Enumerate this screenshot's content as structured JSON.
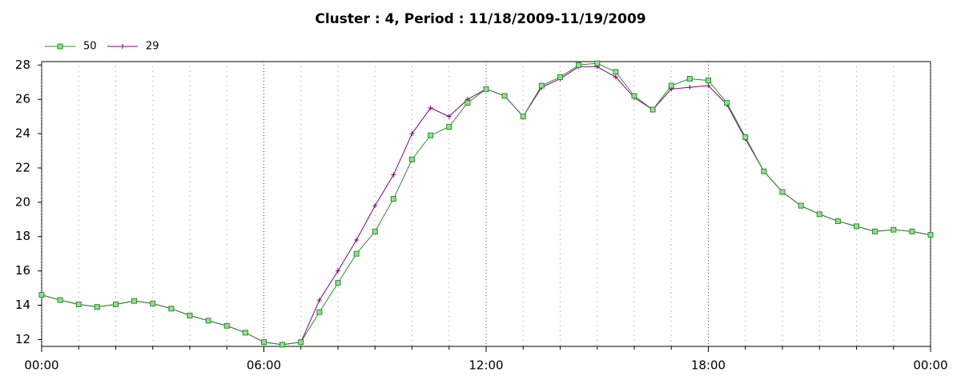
{
  "chart_data": {
    "type": "line",
    "title": "Cluster : 4, Period : 11/18/2009-11/19/2009",
    "x": [
      0,
      0.5,
      1,
      1.5,
      2,
      2.5,
      3,
      3.5,
      4,
      4.5,
      5,
      5.5,
      6,
      6.5,
      7,
      7.5,
      8,
      8.5,
      9,
      9.5,
      10,
      10.5,
      11,
      11.5,
      12,
      12.5,
      13,
      13.5,
      14,
      14.5,
      15,
      15.5,
      16,
      16.5,
      17,
      17.5,
      18,
      18.5,
      19,
      19.5,
      20,
      20.5,
      21,
      21.5,
      22,
      22.5,
      23,
      23.5,
      24
    ],
    "series": [
      {
        "name": "50",
        "color": "#2e8b2e",
        "marker_fill": "#90e090",
        "marker": "square",
        "values": [
          14.6,
          14.3,
          14.05,
          13.9,
          14.05,
          14.25,
          14.1,
          13.8,
          13.4,
          13.1,
          12.8,
          12.4,
          11.85,
          11.7,
          11.85,
          13.6,
          15.3,
          17.0,
          18.3,
          20.2,
          22.5,
          23.9,
          24.4,
          25.8,
          26.6,
          26.2,
          25.0,
          26.8,
          27.3,
          28.0,
          28.1,
          27.6,
          26.2,
          25.4,
          26.8,
          27.2,
          27.1,
          25.8,
          23.8,
          21.8,
          20.6,
          19.8,
          19.3,
          18.9,
          18.6,
          18.3,
          18.4,
          18.3,
          18.1
        ]
      },
      {
        "name": "29",
        "color": "#800080",
        "marker": "cross",
        "values": [
          14.6,
          14.3,
          14.05,
          13.9,
          14.05,
          14.25,
          14.1,
          13.8,
          13.4,
          13.1,
          12.8,
          12.4,
          11.85,
          11.7,
          11.85,
          14.3,
          16.0,
          17.8,
          19.8,
          21.6,
          24.0,
          25.5,
          25.0,
          26.0,
          26.6,
          26.2,
          25.0,
          26.7,
          27.2,
          27.9,
          27.9,
          27.3,
          26.1,
          25.4,
          26.6,
          26.7,
          26.8,
          25.7,
          23.7,
          21.8,
          20.6,
          19.8,
          19.3,
          18.9,
          18.6,
          18.3,
          18.4,
          18.3,
          18.1
        ]
      }
    ],
    "xlim": [
      0,
      24
    ],
    "xticks": [
      {
        "value": 0,
        "label": "00:00"
      },
      {
        "value": 6,
        "label": "06:00"
      },
      {
        "value": 12,
        "label": "12:00"
      },
      {
        "value": 18,
        "label": "18:00"
      },
      {
        "value": 24,
        "label": "00:00"
      }
    ],
    "x_minor_ticks": [
      1,
      2,
      3,
      4,
      5,
      7,
      8,
      9,
      10,
      11,
      13,
      14,
      15,
      16,
      17,
      19,
      20,
      21,
      22,
      23
    ],
    "ylim": [
      11.6,
      28.2
    ],
    "yticks": [
      12,
      14,
      16,
      18,
      20,
      22,
      24,
      26,
      28
    ],
    "grid": true,
    "legend": "top-left"
  }
}
